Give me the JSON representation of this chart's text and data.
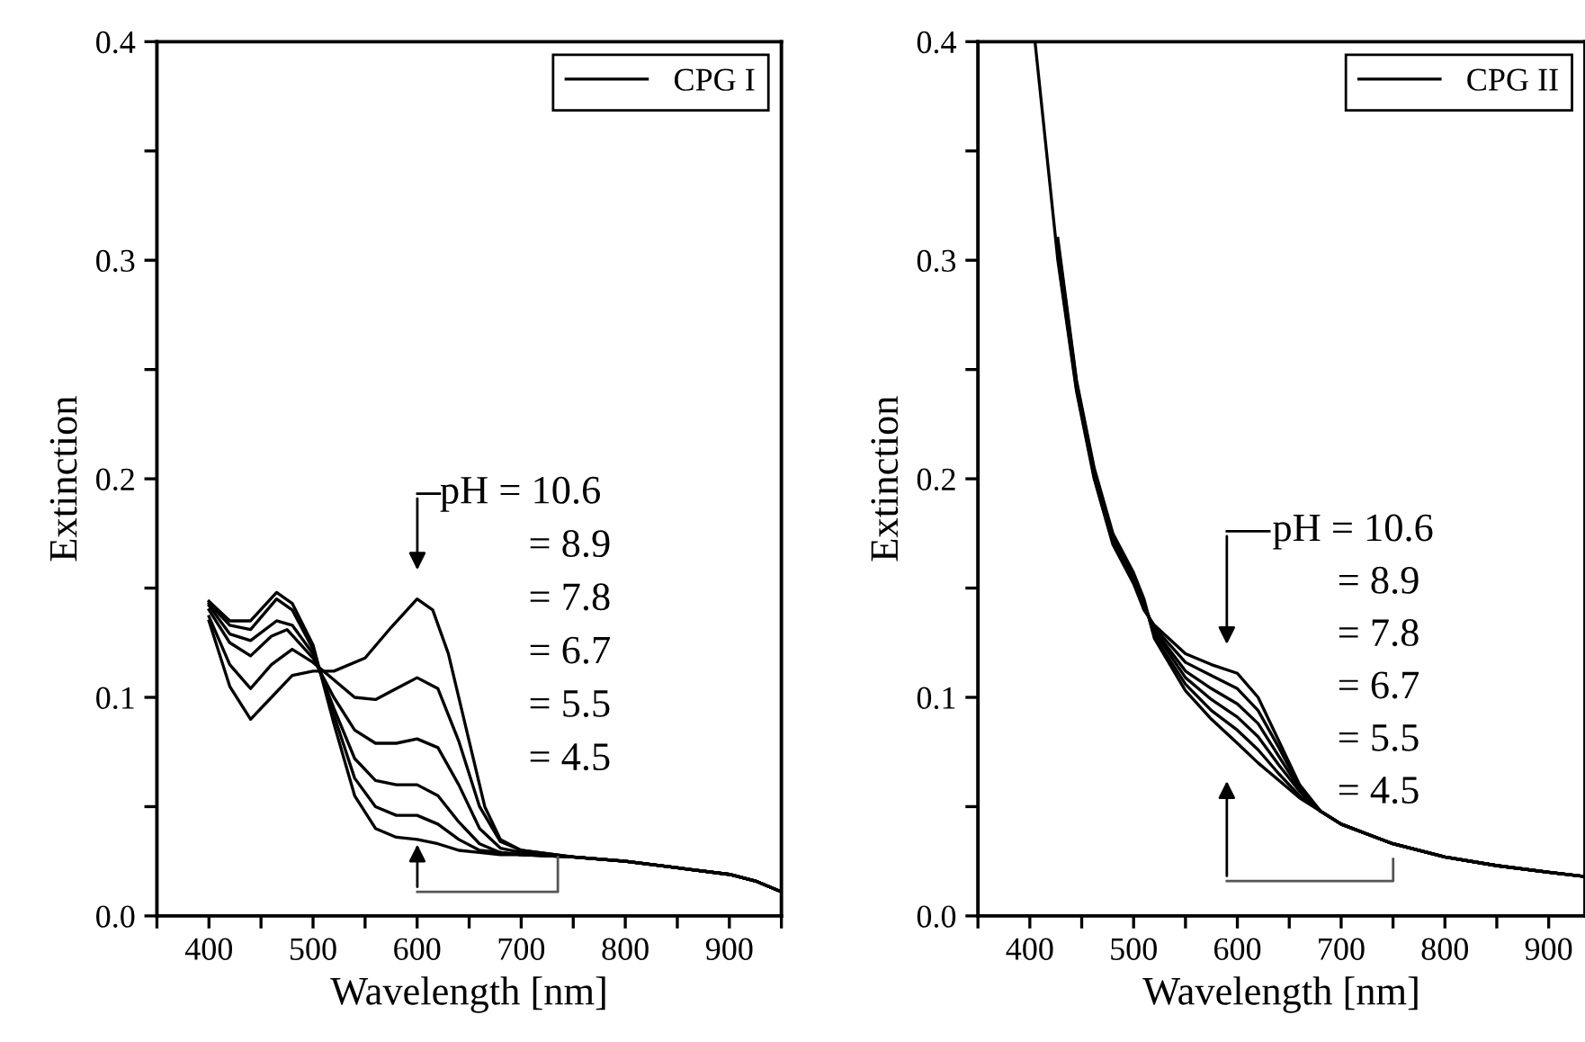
{
  "chart_data": [
    {
      "type": "line",
      "xlabel": "Wavelength [nm]",
      "ylabel": "Extinction",
      "xlim": [
        350,
        950
      ],
      "xticks": [
        {
          "value": 350,
          "label": null
        },
        400,
        {
          "value": 450,
          "label": null
        },
        500,
        {
          "value": 550,
          "label": null
        },
        600,
        {
          "value": 650,
          "label": null
        },
        700,
        {
          "value": 750,
          "label": null
        },
        800,
        {
          "value": 850,
          "label": null
        },
        900,
        {
          "value": 950,
          "label": null
        }
      ],
      "ylim": [
        0,
        0.4
      ],
      "yticks": [
        {
          "value": 0,
          "label": "0.0"
        },
        {
          "value": 0.05,
          "label": null
        },
        0.1,
        {
          "value": 0.15,
          "label": null
        },
        0.2,
        {
          "value": 0.25,
          "label": null
        },
        0.3,
        {
          "value": 0.35,
          "label": null
        },
        0.4
      ],
      "legend": "top right",
      "grid": false,
      "annotations": [
        "pH = 10.6",
        "= 8.9",
        "= 7.8",
        "= 6.7",
        "= 5.5",
        "= 4.5"
      ],
      "series": [
        {
          "name": "CPG I",
          "color": "#000000",
          "x": [
            400,
            420,
            440,
            460,
            480,
            500,
            520,
            550,
            575,
            600,
            615,
            630,
            650,
            665,
            680,
            700,
            750,
            800,
            850,
            900,
            925,
            950
          ],
          "values": [
            0.135,
            0.105,
            0.09,
            0.1,
            0.11,
            0.112,
            0.112,
            0.118,
            0.132,
            0.145,
            0.14,
            0.12,
            0.08,
            0.05,
            0.035,
            0.03,
            0.027,
            0.025,
            0.022,
            0.019,
            0.016,
            0.011
          ]
        },
        {
          "color": "#000000",
          "x": [
            400,
            420,
            440,
            460,
            480,
            500,
            520,
            540,
            560,
            580,
            600,
            620,
            640,
            660,
            680,
            700,
            750,
            800,
            850,
            900,
            925,
            950
          ],
          "values": [
            0.137,
            0.115,
            0.104,
            0.115,
            0.122,
            0.116,
            0.108,
            0.1,
            0.099,
            0.104,
            0.109,
            0.104,
            0.08,
            0.05,
            0.034,
            0.03,
            0.027,
            0.025,
            0.022,
            0.019,
            0.016,
            0.011
          ]
        },
        {
          "color": "#000000",
          "x": [
            400,
            420,
            440,
            460,
            475,
            500,
            520,
            540,
            560,
            580,
            600,
            620,
            640,
            660,
            680,
            700,
            750,
            800,
            850,
            900,
            925,
            950
          ],
          "values": [
            0.14,
            0.125,
            0.119,
            0.128,
            0.131,
            0.118,
            0.1,
            0.085,
            0.079,
            0.079,
            0.081,
            0.077,
            0.06,
            0.04,
            0.031,
            0.029,
            0.027,
            0.025,
            0.022,
            0.019,
            0.016,
            0.011
          ]
        },
        {
          "color": "#000000",
          "x": [
            400,
            420,
            440,
            465,
            480,
            500,
            520,
            540,
            560,
            580,
            600,
            620,
            640,
            660,
            680,
            700,
            750,
            800,
            850,
            900,
            925,
            950
          ],
          "values": [
            0.142,
            0.129,
            0.126,
            0.135,
            0.133,
            0.12,
            0.095,
            0.072,
            0.062,
            0.06,
            0.06,
            0.055,
            0.043,
            0.033,
            0.029,
            0.028,
            0.027,
            0.025,
            0.022,
            0.019,
            0.016,
            0.011
          ]
        },
        {
          "color": "#000000",
          "x": [
            400,
            420,
            440,
            465,
            480,
            500,
            520,
            540,
            560,
            580,
            600,
            620,
            640,
            660,
            680,
            700,
            750,
            800,
            850,
            900,
            925,
            950
          ],
          "values": [
            0.143,
            0.133,
            0.131,
            0.145,
            0.14,
            0.122,
            0.092,
            0.063,
            0.05,
            0.046,
            0.046,
            0.042,
            0.035,
            0.03,
            0.029,
            0.028,
            0.027,
            0.025,
            0.022,
            0.019,
            0.016,
            0.011
          ]
        },
        {
          "color": "#000000",
          "x": [
            400,
            420,
            440,
            465,
            480,
            500,
            520,
            540,
            560,
            580,
            600,
            620,
            640,
            660,
            680,
            700,
            750,
            800,
            850,
            900,
            925,
            950
          ],
          "values": [
            0.144,
            0.135,
            0.135,
            0.148,
            0.143,
            0.124,
            0.088,
            0.055,
            0.04,
            0.036,
            0.035,
            0.033,
            0.03,
            0.029,
            0.028,
            0.028,
            0.027,
            0.025,
            0.022,
            0.019,
            0.016,
            0.011
          ]
        }
      ]
    },
    {
      "type": "line",
      "xlabel": "Wavelength [nm]",
      "ylabel": "Extinction",
      "xlim": [
        350,
        935
      ],
      "xticks": [
        {
          "value": 350,
          "label": null
        },
        400,
        {
          "value": 450,
          "label": null
        },
        500,
        {
          "value": 550,
          "label": null
        },
        600,
        {
          "value": 650,
          "label": null
        },
        700,
        {
          "value": 750,
          "label": null
        },
        800,
        {
          "value": 850,
          "label": null
        },
        900
      ],
      "ylim": [
        0,
        0.4
      ],
      "yticks": [
        {
          "value": 0,
          "label": "0.0"
        },
        {
          "value": 0.05,
          "label": null
        },
        0.1,
        {
          "value": 0.15,
          "label": null
        },
        0.2,
        {
          "value": 0.25,
          "label": null
        },
        0.3,
        {
          "value": 0.35,
          "label": null
        },
        0.4
      ],
      "legend": "top right",
      "grid": false,
      "annotations": [
        "pH = 10.6",
        "= 8.9",
        "= 7.8",
        "= 6.7",
        "= 5.5",
        "= 4.5"
      ],
      "series": [
        {
          "name": "CPG II",
          "color": "#000000",
          "x": [
            405,
            427,
            445,
            462,
            480,
            500,
            510,
            520,
            550,
            575,
            600,
            620,
            640,
            660,
            680,
            700,
            750,
            800,
            850,
            900,
            935
          ],
          "values": [
            0.4,
            0.3,
            0.24,
            0.2,
            0.17,
            0.152,
            0.14,
            0.133,
            0.12,
            0.115,
            0.111,
            0.1,
            0.08,
            0.06,
            0.048,
            0.042,
            0.033,
            0.027,
            0.023,
            0.02,
            0.018
          ]
        },
        {
          "color": "#000000",
          "x": [
            427,
            445,
            462,
            480,
            500,
            510,
            520,
            550,
            575,
            600,
            620,
            640,
            660,
            680,
            700,
            750,
            800,
            850,
            900,
            935
          ],
          "values": [
            0.302,
            0.241,
            0.201,
            0.171,
            0.153,
            0.141,
            0.132,
            0.116,
            0.11,
            0.104,
            0.094,
            0.077,
            0.059,
            0.048,
            0.042,
            0.033,
            0.027,
            0.023,
            0.02,
            0.018
          ]
        },
        {
          "color": "#000000",
          "x": [
            427,
            445,
            462,
            480,
            500,
            510,
            520,
            550,
            575,
            600,
            620,
            640,
            660,
            680,
            700,
            750,
            800,
            850,
            900,
            935
          ],
          "values": [
            0.304,
            0.242,
            0.202,
            0.172,
            0.154,
            0.142,
            0.131,
            0.112,
            0.104,
            0.097,
            0.088,
            0.073,
            0.058,
            0.048,
            0.042,
            0.033,
            0.027,
            0.023,
            0.02,
            0.018
          ]
        },
        {
          "color": "#000000",
          "x": [
            427,
            445,
            462,
            480,
            500,
            510,
            520,
            550,
            575,
            600,
            620,
            640,
            660,
            680,
            700,
            750,
            800,
            850,
            900,
            935
          ],
          "values": [
            0.306,
            0.243,
            0.203,
            0.173,
            0.155,
            0.143,
            0.13,
            0.109,
            0.099,
            0.091,
            0.082,
            0.069,
            0.057,
            0.048,
            0.042,
            0.033,
            0.027,
            0.023,
            0.02,
            0.018
          ]
        },
        {
          "color": "#000000",
          "x": [
            427,
            445,
            462,
            480,
            500,
            510,
            520,
            550,
            575,
            600,
            620,
            640,
            660,
            680,
            700,
            750,
            800,
            850,
            900,
            935
          ],
          "values": [
            0.308,
            0.244,
            0.204,
            0.174,
            0.156,
            0.144,
            0.128,
            0.106,
            0.094,
            0.085,
            0.076,
            0.065,
            0.055,
            0.048,
            0.042,
            0.033,
            0.027,
            0.023,
            0.02,
            0.018
          ]
        },
        {
          "color": "#000000",
          "x": [
            427,
            445,
            462,
            480,
            500,
            510,
            520,
            550,
            575,
            600,
            620,
            640,
            660,
            680,
            700,
            750,
            800,
            850,
            900,
            935
          ],
          "values": [
            0.31,
            0.245,
            0.205,
            0.175,
            0.157,
            0.145,
            0.127,
            0.103,
            0.09,
            0.079,
            0.07,
            0.062,
            0.054,
            0.048,
            0.042,
            0.033,
            0.027,
            0.023,
            0.02,
            0.018
          ]
        }
      ]
    }
  ]
}
